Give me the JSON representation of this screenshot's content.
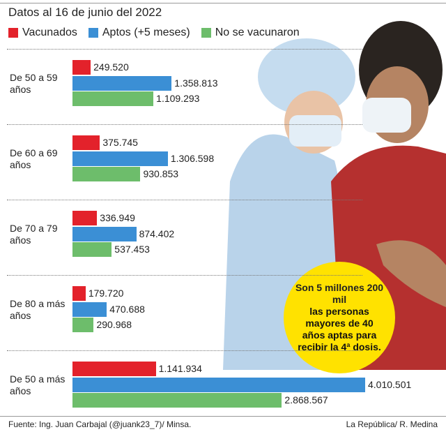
{
  "chart_data": {
    "type": "bar",
    "orientation": "horizontal",
    "title": "Datos al 16 de junio del 2022",
    "categories": [
      "De 50 a 59 años",
      "De 60 a 69 años",
      "De 70 a 79 años",
      "De 80 a más años",
      "De 50 a más años"
    ],
    "series": [
      {
        "name": "Vacunados",
        "color": "#e3222b",
        "values": [
          249520,
          375745,
          336949,
          179720,
          1141934
        ],
        "value_labels": [
          "249.520",
          "375.745",
          "336.949",
          "179.720",
          "1.141.934"
        ]
      },
      {
        "name": "Aptos (+5 meses)",
        "color": "#3b8fd5",
        "values": [
          1358813,
          1306598,
          874402,
          470688,
          4010501
        ],
        "value_labels": [
          "1.358.813",
          "1.306.598",
          "874.402",
          "470.688",
          "4.010.501"
        ]
      },
      {
        "name": "No se vacunaron",
        "color": "#6dbd6b",
        "values": [
          1109293,
          930853,
          537453,
          290968,
          2868567
        ],
        "value_labels": [
          "1.109.293",
          "930.853",
          "537.453",
          "290.968",
          "2.868.567"
        ]
      }
    ],
    "annotation": {
      "highlight": "Son 5 millones 200 mil",
      "text": "las personas mayores de 40 años aptas para recibir la 4ª dosis."
    },
    "source": "Fuente: Ing. Juan Carbajal (@juank23_7)/ Minsa.",
    "credit": "La República/ R. Medina"
  }
}
